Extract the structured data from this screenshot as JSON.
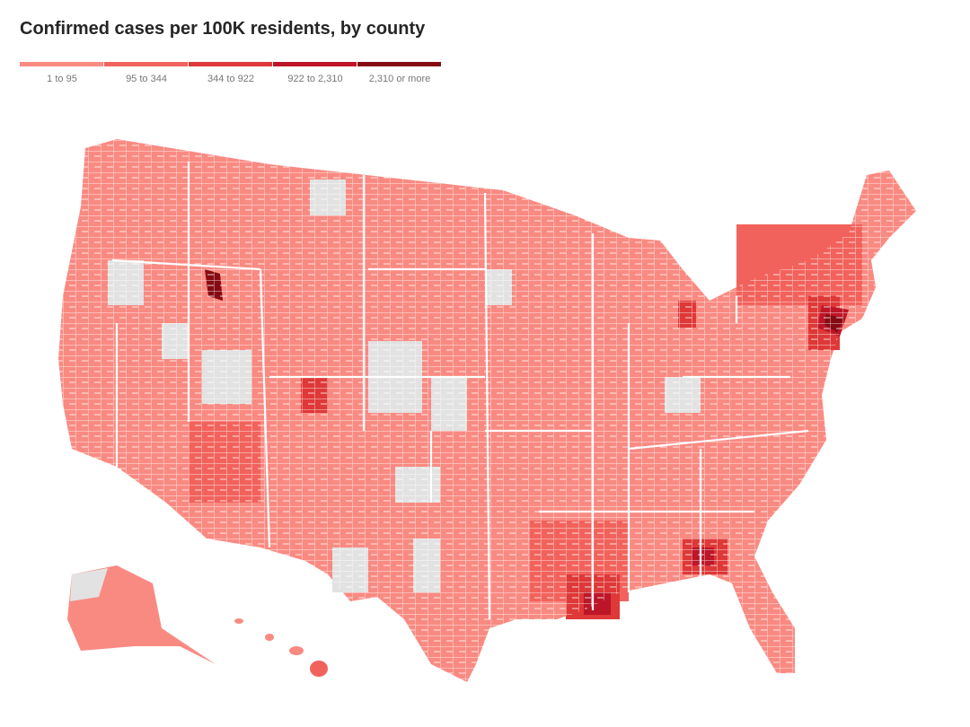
{
  "title": "Confirmed cases per 100K residents, by county",
  "legend": {
    "items": [
      {
        "label": "1 to 95",
        "color": "#f98a82"
      },
      {
        "label": "95 to 344",
        "color": "#f2625c"
      },
      {
        "label": "344 to 922",
        "color": "#de3838"
      },
      {
        "label": "922 to 2,310",
        "color": "#bd1628"
      },
      {
        "label": "2,310 or more",
        "color": "#860a12"
      }
    ]
  }
}
